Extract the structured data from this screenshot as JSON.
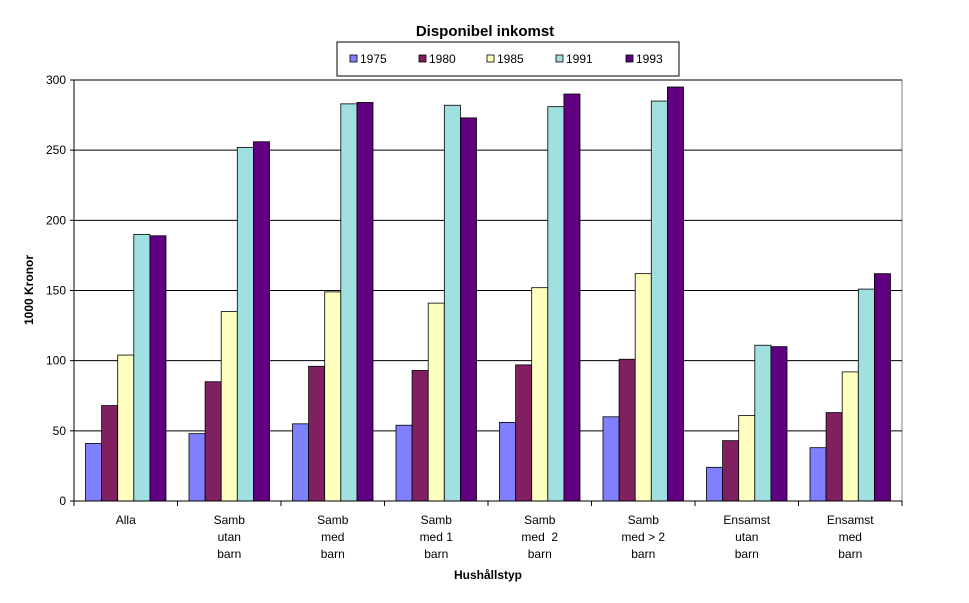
{
  "chart_data": {
    "type": "bar",
    "title": "Disponibel inkomst",
    "xlabel": "Hushållstyp",
    "ylabel": "1000 Kronor",
    "ylim": [
      0,
      300
    ],
    "yticks": [
      0,
      50,
      100,
      150,
      200,
      250,
      300
    ],
    "grid": true,
    "legend_position": "top",
    "categories": [
      [
        "Alla"
      ],
      [
        "Samb",
        "utan",
        "barn"
      ],
      [
        "Samb",
        "med",
        "barn"
      ],
      [
        "Samb",
        "med 1",
        "barn"
      ],
      [
        "Samb",
        "med  2",
        "barn"
      ],
      [
        "Samb",
        "med > 2",
        "barn"
      ],
      [
        "Ensamst",
        "utan",
        "barn"
      ],
      [
        "Ensamst",
        "med",
        "barn"
      ]
    ],
    "series": [
      {
        "name": "1975",
        "color": "#8080ff",
        "values": [
          41,
          48,
          55,
          54,
          56,
          60,
          24,
          38
        ]
      },
      {
        "name": "1980",
        "color": "#802060",
        "values": [
          68,
          85,
          96,
          93,
          97,
          101,
          43,
          63
        ]
      },
      {
        "name": "1985",
        "color": "#ffffc0",
        "values": [
          104,
          135,
          149,
          141,
          152,
          162,
          61,
          92
        ]
      },
      {
        "name": "1991",
        "color": "#a0e0e0",
        "values": [
          190,
          252,
          283,
          282,
          281,
          285,
          111,
          151
        ]
      },
      {
        "name": "1993",
        "color": "#600080",
        "values": [
          189,
          256,
          284,
          273,
          290,
          295,
          110,
          162
        ]
      }
    ]
  }
}
